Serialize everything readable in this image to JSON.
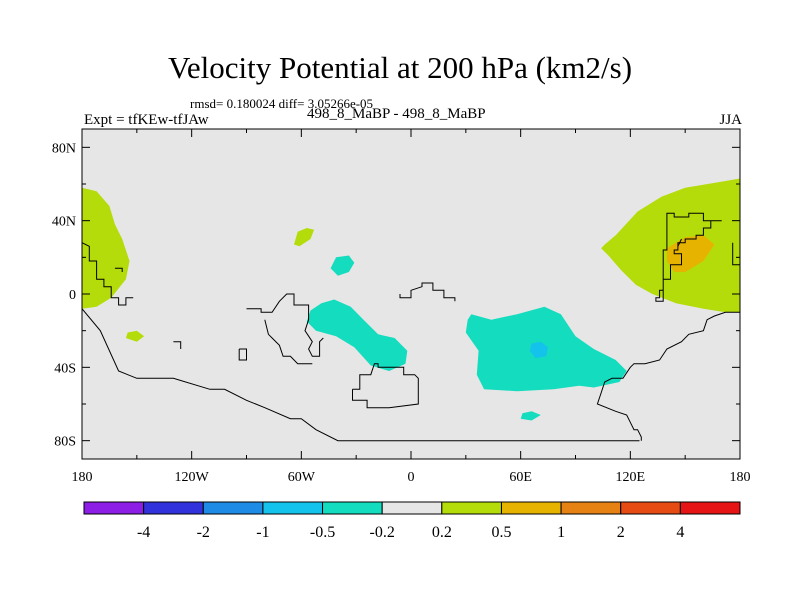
{
  "title": "Velocity Potential at 200 hPa (km2/s)",
  "stats": "rmsd= 0.180024 diff= 3.05266e-05",
  "left_label": "Expt = tfKEw-tfJAw",
  "center_label": "498_8_MaBP - 498_8_MaBP",
  "right_label": "JJA",
  "chart_data": {
    "type": "contour-map",
    "projection": "cylindrical-equidistant",
    "xlim": [
      -180,
      180
    ],
    "ylim": [
      -90,
      90
    ],
    "x_ticks": [
      {
        "value": -180,
        "label": "180"
      },
      {
        "value": -120,
        "label": "120W"
      },
      {
        "value": -60,
        "label": "60W"
      },
      {
        "value": 0,
        "label": "0"
      },
      {
        "value": 60,
        "label": "60E"
      },
      {
        "value": 120,
        "label": "120E"
      },
      {
        "value": 180,
        "label": "180"
      }
    ],
    "y_ticks": [
      {
        "value": 80,
        "label": "80N"
      },
      {
        "value": 40,
        "label": "40N"
      },
      {
        "value": 0,
        "label": "0"
      },
      {
        "value": -40,
        "label": "40S"
      },
      {
        "value": -80,
        "label": "80S"
      }
    ],
    "background_color": "#e6e6e6",
    "levels": [
      "-4",
      "-2",
      "-1",
      "-0.5",
      "-0.2",
      "0.2",
      "0.5",
      "1",
      "2",
      "4"
    ],
    "colors": [
      "#8c1ee6",
      "#3232dc",
      "#1e8ce6",
      "#14c3eb",
      "#14dcbe",
      "#e6e6e6",
      "#b4dc0a",
      "#e6b400",
      "#e68214",
      "#e64b14",
      "#e61414"
    ],
    "regions": [
      {
        "name": "n-pacific-east",
        "color": "#b4dc0a",
        "lonlat": [
          [
            -180,
            58
          ],
          [
            -172,
            56
          ],
          [
            -165,
            48
          ],
          [
            -162,
            38
          ],
          [
            -158,
            30
          ],
          [
            -154,
            18
          ],
          [
            -156,
            8
          ],
          [
            -164,
            -2
          ],
          [
            -172,
            -7
          ],
          [
            -180,
            -8
          ]
        ]
      },
      {
        "name": "small-pacific",
        "color": "#b4dc0a",
        "lonlat": [
          [
            -155,
            -21
          ],
          [
            -150,
            -20
          ],
          [
            -146,
            -23
          ],
          [
            -150,
            -26
          ],
          [
            -156,
            -24
          ]
        ]
      },
      {
        "name": "s-america-north",
        "color": "#b4dc0a",
        "lonlat": [
          [
            -62,
            34
          ],
          [
            -57,
            36
          ],
          [
            -53,
            35
          ],
          [
            -55,
            30
          ],
          [
            -61,
            26
          ],
          [
            -64,
            27
          ]
        ]
      },
      {
        "name": "tropical-atlantic",
        "color": "#14dcbe",
        "lonlat": [
          [
            -41,
            20
          ],
          [
            -34,
            21
          ],
          [
            -31,
            17
          ],
          [
            -34,
            12
          ],
          [
            -40,
            10
          ],
          [
            -44,
            14
          ]
        ]
      },
      {
        "name": "south-atlantic",
        "color": "#14dcbe",
        "lonlat": [
          [
            -55,
            -9
          ],
          [
            -49,
            -5
          ],
          [
            -42,
            -3
          ],
          [
            -33,
            -7
          ],
          [
            -26,
            -14
          ],
          [
            -18,
            -22
          ],
          [
            -9,
            -24
          ],
          [
            -2,
            -31
          ],
          [
            -3,
            -38
          ],
          [
            -12,
            -42
          ],
          [
            -22,
            -39
          ],
          [
            -31,
            -29
          ],
          [
            -41,
            -23
          ],
          [
            -52,
            -20
          ],
          [
            -57,
            -15
          ]
        ]
      },
      {
        "name": "indian-ocean",
        "color": "#14dcbe",
        "lonlat": [
          [
            33,
            -11
          ],
          [
            44,
            -14
          ],
          [
            58,
            -11
          ],
          [
            73,
            -7
          ],
          [
            82,
            -11
          ],
          [
            90,
            -23
          ],
          [
            100,
            -30
          ],
          [
            112,
            -36
          ],
          [
            118,
            -42
          ],
          [
            114,
            -48
          ],
          [
            100,
            -51
          ],
          [
            92,
            -50
          ],
          [
            78,
            -52
          ],
          [
            58,
            -53
          ],
          [
            40,
            -52
          ],
          [
            36,
            -44
          ],
          [
            37,
            -31
          ],
          [
            30,
            -21
          ],
          [
            31,
            -14
          ]
        ]
      },
      {
        "name": "indian-ocean-core",
        "color": "#14c3eb",
        "lonlat": [
          [
            66,
            -27
          ],
          [
            71,
            -26
          ],
          [
            75,
            -29
          ],
          [
            74,
            -34
          ],
          [
            68,
            -35
          ],
          [
            65,
            -31
          ]
        ]
      },
      {
        "name": "southern-islet",
        "color": "#14dcbe",
        "lonlat": [
          [
            61,
            -65
          ],
          [
            66,
            -64
          ],
          [
            71,
            -66
          ],
          [
            66,
            -69
          ],
          [
            60,
            -68
          ]
        ]
      },
      {
        "name": "w-pacific",
        "color": "#b4dc0a",
        "lonlat": [
          [
            180,
            63
          ],
          [
            168,
            61
          ],
          [
            150,
            58
          ],
          [
            137,
            53
          ],
          [
            124,
            45
          ],
          [
            112,
            32
          ],
          [
            106,
            27
          ],
          [
            104,
            25
          ],
          [
            108,
            21
          ],
          [
            115,
            13
          ],
          [
            123,
            5
          ],
          [
            132,
            0
          ],
          [
            145,
            -5
          ],
          [
            160,
            -8
          ],
          [
            172,
            -10
          ],
          [
            180,
            -10
          ]
        ]
      },
      {
        "name": "w-pacific-core",
        "color": "#e6b400",
        "lonlat": [
          [
            140,
            25
          ],
          [
            150,
            31
          ],
          [
            160,
            32
          ],
          [
            166,
            27
          ],
          [
            160,
            18
          ],
          [
            150,
            12
          ],
          [
            144,
            12
          ],
          [
            140,
            18
          ]
        ]
      }
    ],
    "coastlines": [
      [
        [
          -180,
          28
        ],
        [
          -176,
          26
        ],
        [
          -176,
          18
        ],
        [
          -172,
          18
        ],
        [
          -172,
          8
        ],
        [
          -168,
          8
        ],
        [
          -168,
          4
        ],
        [
          -164,
          4
        ],
        [
          -164,
          -2
        ],
        [
          -160,
          -2
        ],
        [
          -160,
          -6
        ],
        [
          -156,
          -6
        ],
        [
          -156,
          -2
        ],
        [
          -152,
          -2
        ]
      ],
      [
        [
          -162,
          14
        ],
        [
          -158,
          14
        ],
        [
          -158,
          12
        ]
      ],
      [
        [
          -180,
          -8
        ],
        [
          -170,
          -20
        ],
        [
          -160,
          -42
        ],
        [
          -150,
          -46
        ],
        [
          -130,
          -46
        ],
        [
          -110,
          -52
        ],
        [
          -102,
          -52
        ],
        [
          -90,
          -58
        ],
        [
          -80,
          -62
        ],
        [
          -66,
          -68
        ],
        [
          -60,
          -68
        ],
        [
          -52,
          -74
        ],
        [
          -40,
          -80
        ],
        [
          -20,
          -80
        ],
        [
          20,
          -80
        ],
        [
          60,
          -80
        ],
        [
          110,
          -80
        ],
        [
          125,
          -80
        ]
      ],
      [
        [
          -94,
          -30
        ],
        [
          -90,
          -30
        ],
        [
          -90,
          -36
        ],
        [
          -94,
          -36
        ],
        [
          -94,
          -30
        ]
      ],
      [
        [
          -130,
          -26
        ],
        [
          -126,
          -26
        ],
        [
          -126,
          -30
        ]
      ],
      [
        [
          -90,
          -8
        ],
        [
          -82,
          -8
        ],
        [
          -82,
          -10
        ],
        [
          -76,
          -10
        ],
        [
          -72,
          -4
        ],
        [
          -68,
          0
        ],
        [
          -64,
          0
        ],
        [
          -64,
          -6
        ],
        [
          -56,
          -6
        ],
        [
          -56,
          -14
        ],
        [
          -58,
          -20
        ],
        [
          -54,
          -26
        ],
        [
          -56,
          -30
        ],
        [
          -54,
          -34
        ],
        [
          -50,
          -34
        ],
        [
          -50,
          -26
        ],
        [
          -48,
          -24
        ]
      ],
      [
        [
          -80,
          -14
        ],
        [
          -78,
          -22
        ],
        [
          -76,
          -24
        ],
        [
          -72,
          -28
        ],
        [
          -70,
          -34
        ],
        [
          -66,
          -34
        ],
        [
          -62,
          -38
        ],
        [
          -54,
          -38
        ]
      ],
      [
        [
          -32,
          -52
        ],
        [
          -28,
          -52
        ],
        [
          -28,
          -44
        ],
        [
          -22,
          -44
        ],
        [
          -20,
          -38
        ],
        [
          -18,
          -38
        ],
        [
          -18,
          -40
        ],
        [
          -4,
          -40
        ],
        [
          -4,
          -44
        ],
        [
          2,
          -44
        ],
        [
          4,
          -46
        ],
        [
          4,
          -60
        ],
        [
          -12,
          -62
        ],
        [
          -24,
          -62
        ],
        [
          -24,
          -58
        ],
        [
          -32,
          -58
        ],
        [
          -32,
          -52
        ]
      ],
      [
        [
          -6,
          0
        ],
        [
          -6,
          -2
        ],
        [
          0,
          -2
        ],
        [
          0,
          2
        ],
        [
          6,
          4
        ],
        [
          6,
          6
        ],
        [
          12,
          6
        ],
        [
          12,
          2
        ],
        [
          18,
          2
        ],
        [
          18,
          -2
        ],
        [
          24,
          -2
        ],
        [
          24,
          -4
        ]
      ],
      [
        [
          170,
          40
        ],
        [
          160,
          40
        ],
        [
          160,
          44
        ],
        [
          152,
          44
        ],
        [
          152,
          42
        ],
        [
          144,
          42
        ],
        [
          144,
          44
        ],
        [
          140,
          44
        ],
        [
          140,
          24
        ],
        [
          138,
          24
        ],
        [
          138,
          2
        ],
        [
          136,
          2
        ],
        [
          136,
          -2
        ],
        [
          134,
          -2
        ],
        [
          134,
          -4
        ],
        [
          138,
          -4
        ],
        [
          138,
          8
        ],
        [
          142,
          8
        ],
        [
          142,
          16
        ],
        [
          148,
          16
        ],
        [
          148,
          22
        ],
        [
          144,
          22
        ],
        [
          144,
          24
        ],
        [
          146,
          24
        ],
        [
          146,
          28
        ],
        [
          150,
          28
        ],
        [
          150,
          30
        ],
        [
          156,
          30
        ],
        [
          156,
          32
        ],
        [
          160,
          32
        ],
        [
          160,
          36
        ],
        [
          164,
          36
        ],
        [
          164,
          40
        ]
      ],
      [
        [
          176,
          28
        ],
        [
          176,
          16
        ],
        [
          180,
          16
        ]
      ],
      [
        [
          180,
          -10
        ],
        [
          172,
          -10
        ],
        [
          166,
          -12
        ],
        [
          162,
          -14
        ],
        [
          160,
          -20
        ],
        [
          152,
          -22
        ],
        [
          148,
          -26
        ],
        [
          140,
          -30
        ],
        [
          136,
          -36
        ],
        [
          128,
          -38
        ],
        [
          122,
          -38
        ],
        [
          120,
          -40
        ],
        [
          116,
          -46
        ],
        [
          110,
          -46
        ],
        [
          106,
          -48
        ],
        [
          104,
          -54
        ],
        [
          102,
          -60
        ],
        [
          112,
          -64
        ],
        [
          118,
          -66
        ],
        [
          120,
          -70
        ],
        [
          122,
          -74
        ],
        [
          124,
          -74
        ],
        [
          126,
          -78
        ],
        [
          126,
          -80
        ]
      ],
      [
        [
          146,
          26
        ],
        [
          148,
          30
        ]
      ]
    ]
  }
}
